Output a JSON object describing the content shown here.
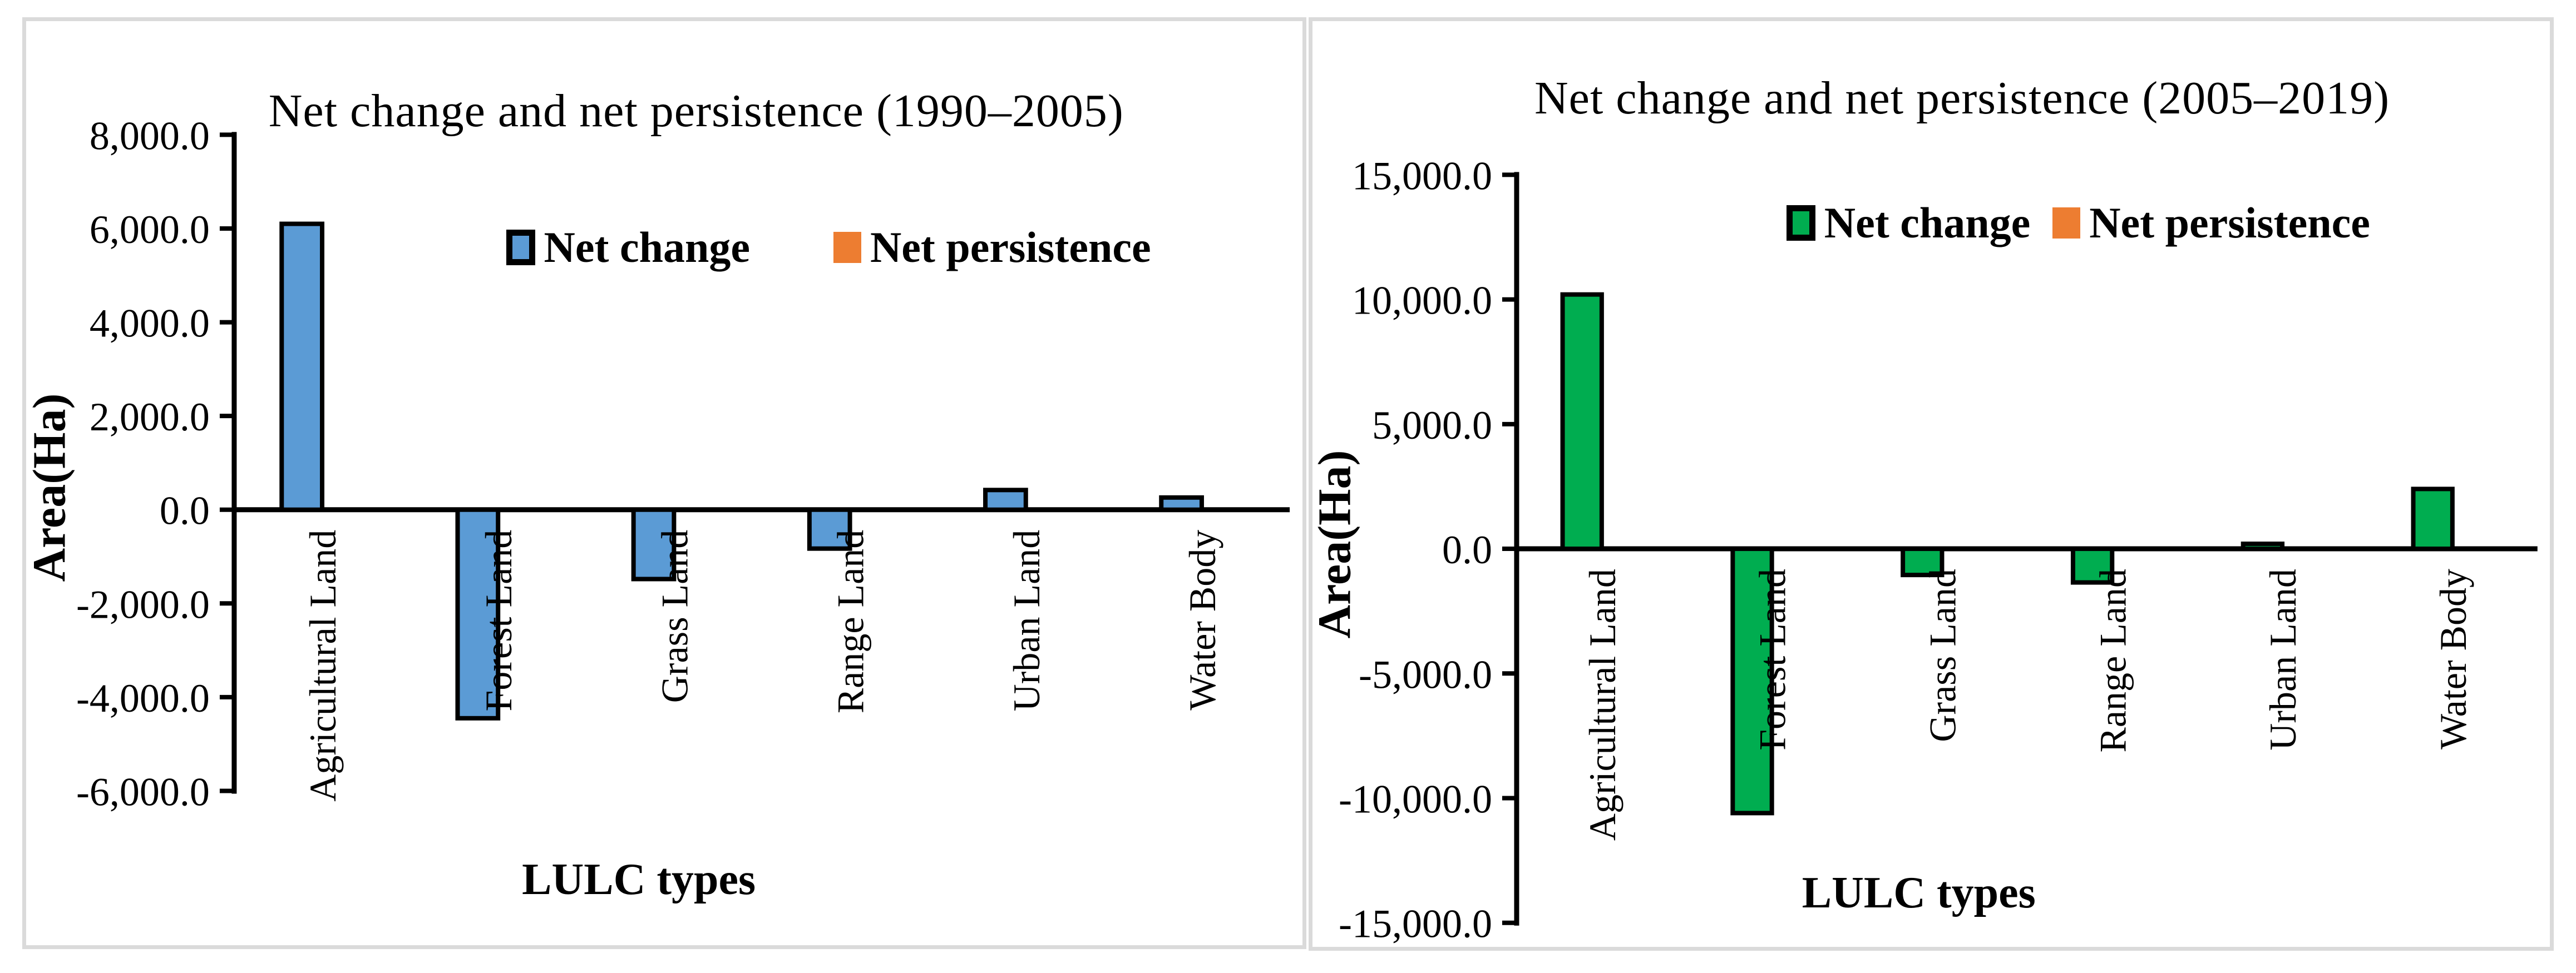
{
  "figure": {
    "background_color": "#FFFFFF",
    "card_border_color": "#DADADA",
    "axis_color": "#000000",
    "bar_outline_color": "#000000"
  },
  "chart_data": [
    {
      "type": "bar",
      "title": "Net change and net persistence (1990–2005)",
      "xlabel": "LULC types",
      "ylabel": "Area(Ha)",
      "categories": [
        "Agricultural Land",
        "Forest Land",
        "Grass Land",
        "Range Land",
        "Urban Land",
        "Water Body"
      ],
      "series": [
        {
          "name": "Net change",
          "color": "#5B9BD5",
          "bordered_swatch": true,
          "values": [
            6100,
            -4450,
            -1480,
            -830,
            420,
            260
          ]
        },
        {
          "name": "Net persistence",
          "color": "#ED7D31",
          "bordered_swatch": false,
          "values": [
            0,
            0,
            0,
            0,
            0,
            0
          ]
        }
      ],
      "ylim": [
        -6000,
        8000
      ],
      "yticks": [
        8000,
        6000,
        4000,
        2000,
        0,
        -2000,
        -4000,
        -6000
      ],
      "ytick_labels": [
        "8,000.0",
        "6,000.0",
        "4,000.0",
        "2,000.0",
        "0.0",
        "-2,000.0",
        "-4,000.0",
        "-6,000.0"
      ],
      "grid": false,
      "legend_position": "inside-top"
    },
    {
      "type": "bar",
      "title": "Net change and net persistence (2005–2019)",
      "xlabel": "LULC types",
      "ylabel": "Area(Ha)",
      "categories": [
        "Agricultural Land",
        "Forest Land",
        "Grass Land",
        "Range Land",
        "Urban Land",
        "Water Body"
      ],
      "series": [
        {
          "name": "Net change",
          "color": "#00AD50",
          "bordered_swatch": true,
          "values": [
            10200,
            -10600,
            -1050,
            -1350,
            200,
            2400
          ]
        },
        {
          "name": "Net persistence",
          "color": "#ED7D31",
          "bordered_swatch": false,
          "values": [
            0,
            0,
            0,
            0,
            0,
            0
          ]
        }
      ],
      "ylim": [
        -15000,
        15000
      ],
      "yticks": [
        15000,
        10000,
        5000,
        0,
        -5000,
        -10000,
        -15000
      ],
      "ytick_labels": [
        "15,000.0",
        "10,000.0",
        "5,000.0",
        "0.0",
        "-5,000.0",
        "-10,000.0",
        "-15,000.0"
      ],
      "grid": false,
      "legend_position": "inside-top"
    }
  ]
}
